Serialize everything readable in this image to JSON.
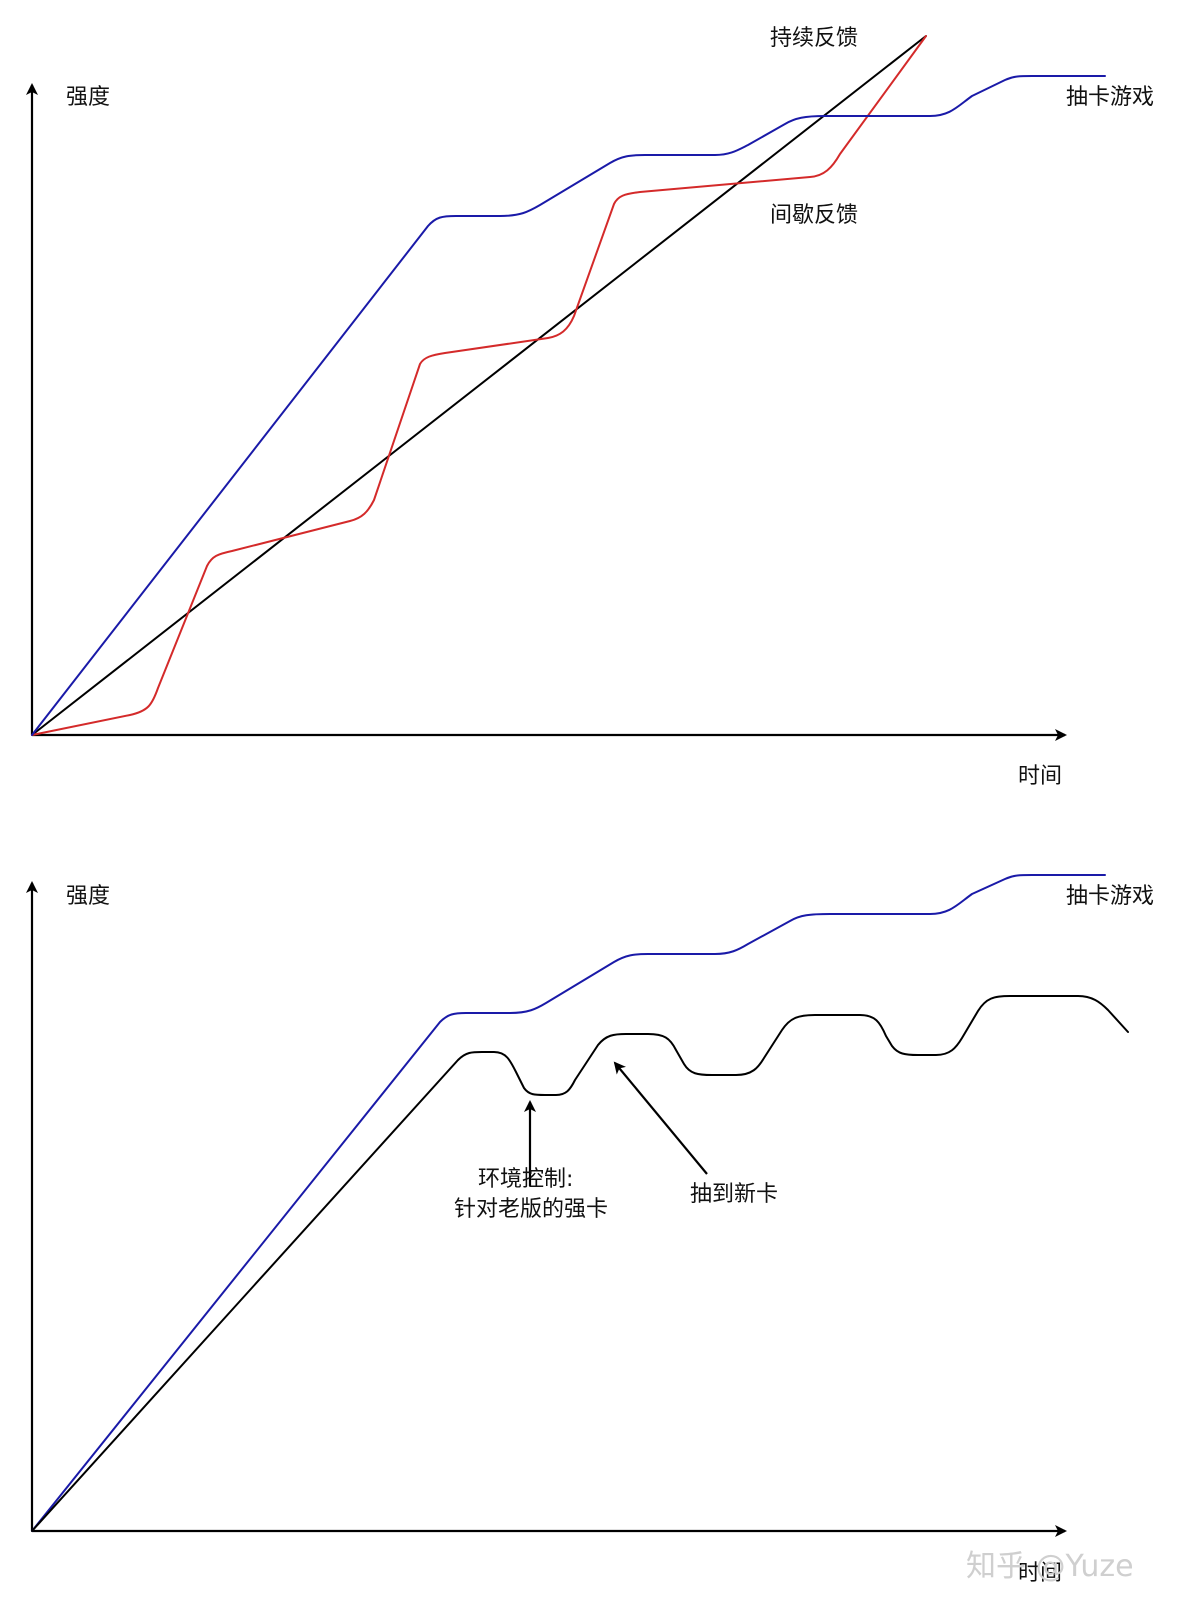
{
  "colors": {
    "axis": "#000000",
    "continuous": "#000000",
    "intermittent": "#d42a2a",
    "gacha": "#1a1aa8",
    "environment": "#000000",
    "watermark": "#cfcfcf"
  },
  "top_chart": {
    "y_axis_label": "强度",
    "x_axis_label": "时间",
    "labels": {
      "continuous": "持续反馈",
      "intermittent": "间歇反馈",
      "gacha": "抽卡游戏"
    }
  },
  "bottom_chart": {
    "y_axis_label": "强度",
    "x_axis_label": "时间",
    "labels": {
      "gacha": "抽卡游戏"
    },
    "annotations": {
      "environment_line1": "环境控制:",
      "environment_line2": "针对老版的强卡",
      "new_card": "抽到新卡"
    }
  },
  "watermark": "知乎 @Yuze"
}
